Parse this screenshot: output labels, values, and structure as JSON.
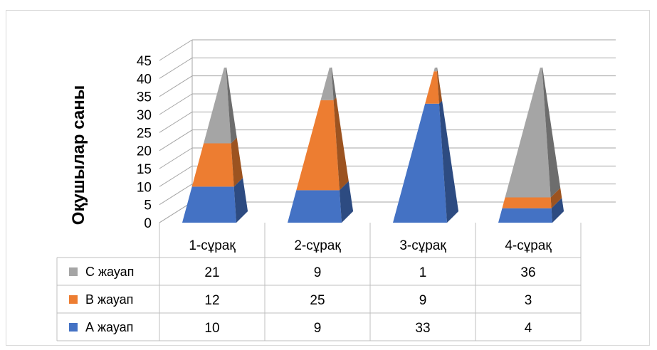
{
  "chart_data": {
    "type": "bar",
    "style": "3d-stacked-pyramid",
    "title": "",
    "xlabel": "",
    "ylabel": "Оқушылар саны",
    "ylim": [
      0,
      45
    ],
    "yticks": [
      "0",
      "5",
      "10",
      "15",
      "20",
      "25",
      "30",
      "35",
      "40",
      "45"
    ],
    "grid": true,
    "legend_placement": "data-table-left",
    "categories": [
      "1-сұрақ",
      "2-сұрақ",
      "3-сұрақ",
      "4-сұрақ"
    ],
    "series": [
      {
        "name": "А жауап",
        "color": "#4472c4",
        "values": [
          10,
          9,
          33,
          4
        ]
      },
      {
        "name": "В жауап",
        "color": "#ed7d31",
        "values": [
          12,
          25,
          9,
          3
        ]
      },
      {
        "name": "С жауап",
        "color": "#a5a5a5",
        "values": [
          21,
          9,
          1,
          36
        ]
      }
    ],
    "table_row_order": [
      "С жауап",
      "В жауап",
      "А жауап"
    ]
  }
}
